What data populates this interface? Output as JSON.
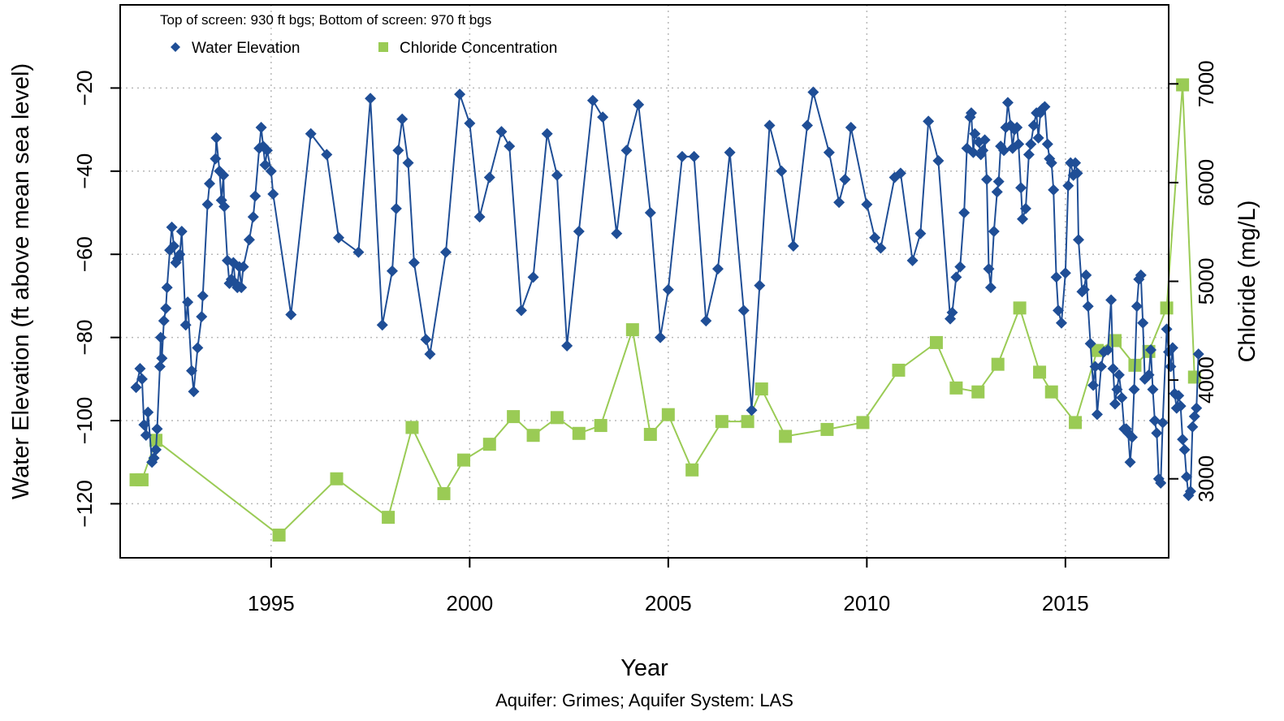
{
  "chart_data": {
    "type": "line",
    "xlabel": "Year",
    "ylabel": "Water Elevation (ft above mean sea level)",
    "y2label": "Chloride (mg/L)",
    "caption": "Aquifer: Grimes; Aquifer System: LAS",
    "note": "Top of screen: 930 ft bgs; Bottom of screen: 970 ft bgs",
    "xlim": [
      1991.2,
      2017.6
    ],
    "ylim": [
      -133,
      0
    ],
    "y2lim": [
      2200,
      7800
    ],
    "x_ticks": [
      "1995",
      "2000",
      "2005",
      "2010",
      "2015"
    ],
    "y_ticks": [
      "−20",
      "−40",
      "−60",
      "−80",
      "−100",
      "−120"
    ],
    "y2_ticks": [
      "3000",
      "4000",
      "5000",
      "6000",
      "7000"
    ],
    "grid": true,
    "legend_position": "top-left",
    "series": [
      {
        "name": "Water Elevation",
        "axis": "left",
        "color": "#1f4e96",
        "marker": "diamond",
        "points": [
          [
            1991.6,
            -92
          ],
          [
            1991.7,
            -87.5
          ],
          [
            1991.75,
            -90
          ],
          [
            1991.8,
            -101
          ],
          [
            1991.85,
            -103.5
          ],
          [
            1991.9,
            -98
          ],
          [
            1992.0,
            -110
          ],
          [
            1992.05,
            -109
          ],
          [
            1992.1,
            -107
          ],
          [
            1992.13,
            -102
          ],
          [
            1992.2,
            -87
          ],
          [
            1992.22,
            -80
          ],
          [
            1992.25,
            -85
          ],
          [
            1992.3,
            -76
          ],
          [
            1992.35,
            -73
          ],
          [
            1992.38,
            -68
          ],
          [
            1992.45,
            -59
          ],
          [
            1992.5,
            -53.5
          ],
          [
            1992.55,
            -58
          ],
          [
            1992.6,
            -62
          ],
          [
            1992.65,
            -61
          ],
          [
            1992.7,
            -60
          ],
          [
            1992.75,
            -54.5
          ],
          [
            1992.85,
            -77
          ],
          [
            1992.9,
            -71.5
          ],
          [
            1993.0,
            -88
          ],
          [
            1993.05,
            -93
          ],
          [
            1993.15,
            -82.5
          ],
          [
            1993.25,
            -75
          ],
          [
            1993.28,
            -70
          ],
          [
            1993.4,
            -48
          ],
          [
            1993.45,
            -43
          ],
          [
            1993.6,
            -37
          ],
          [
            1993.62,
            -32
          ],
          [
            1993.7,
            -40
          ],
          [
            1993.75,
            -47
          ],
          [
            1993.8,
            -41
          ],
          [
            1993.82,
            -48.5
          ],
          [
            1993.9,
            -61.5
          ],
          [
            1993.95,
            -67
          ],
          [
            1994.0,
            -66
          ],
          [
            1994.05,
            -62
          ],
          [
            1994.1,
            -67
          ],
          [
            1994.15,
            -68
          ],
          [
            1994.2,
            -63
          ],
          [
            1994.25,
            -68
          ],
          [
            1994.3,
            -63
          ],
          [
            1994.45,
            -56.5
          ],
          [
            1994.55,
            -51
          ],
          [
            1994.6,
            -46
          ],
          [
            1994.7,
            -34.5
          ],
          [
            1994.75,
            -29.5
          ],
          [
            1994.8,
            -34
          ],
          [
            1994.85,
            -38.5
          ],
          [
            1994.9,
            -35
          ],
          [
            1995.0,
            -40
          ],
          [
            1995.05,
            -45.5
          ],
          [
            1995.5,
            -74.5
          ],
          [
            1996.0,
            -31
          ],
          [
            1996.4,
            -36
          ],
          [
            1996.7,
            -56
          ],
          [
            1997.2,
            -59.5
          ],
          [
            1997.5,
            -22.5
          ],
          [
            1997.8,
            -77
          ],
          [
            1998.05,
            -64
          ],
          [
            1998.15,
            -49
          ],
          [
            1998.2,
            -35
          ],
          [
            1998.3,
            -27.5
          ],
          [
            1998.45,
            -38
          ],
          [
            1998.6,
            -62
          ],
          [
            1998.9,
            -80.5
          ],
          [
            1999.0,
            -84
          ],
          [
            1999.4,
            -59.5
          ],
          [
            1999.75,
            -21.5
          ],
          [
            2000.0,
            -28.5
          ],
          [
            2000.25,
            -51
          ],
          [
            2000.5,
            -41.5
          ],
          [
            2000.8,
            -30.5
          ],
          [
            2001.0,
            -34
          ],
          [
            2001.3,
            -73.5
          ],
          [
            2001.6,
            -65.5
          ],
          [
            2001.95,
            -31
          ],
          [
            2002.2,
            -41
          ],
          [
            2002.45,
            -82
          ],
          [
            2002.75,
            -54.5
          ],
          [
            2003.1,
            -23
          ],
          [
            2003.35,
            -27
          ],
          [
            2003.7,
            -55
          ],
          [
            2003.95,
            -35
          ],
          [
            2004.25,
            -24
          ],
          [
            2004.55,
            -50
          ],
          [
            2004.8,
            -80
          ],
          [
            2005.0,
            -68.5
          ],
          [
            2005.35,
            -36.5
          ],
          [
            2005.65,
            -36.5
          ],
          [
            2005.95,
            -76
          ],
          [
            2006.25,
            -63.5
          ],
          [
            2006.55,
            -35.5
          ],
          [
            2006.9,
            -73.5
          ],
          [
            2007.1,
            -97.5
          ],
          [
            2007.3,
            -67.5
          ],
          [
            2007.55,
            -29
          ],
          [
            2007.85,
            -40
          ],
          [
            2008.15,
            -58
          ],
          [
            2008.5,
            -29
          ],
          [
            2008.65,
            -21
          ],
          [
            2009.05,
            -35.5
          ],
          [
            2009.3,
            -47.5
          ],
          [
            2009.45,
            -42
          ],
          [
            2009.6,
            -29.5
          ],
          [
            2010.0,
            -48
          ],
          [
            2010.2,
            -56
          ],
          [
            2010.35,
            -58.5
          ],
          [
            2010.7,
            -41.5
          ],
          [
            2010.85,
            -40.5
          ],
          [
            2011.15,
            -61.5
          ],
          [
            2011.35,
            -55
          ],
          [
            2011.55,
            -28
          ],
          [
            2011.8,
            -37.5
          ],
          [
            2012.1,
            -75.5
          ],
          [
            2012.15,
            -74
          ],
          [
            2012.25,
            -65.5
          ],
          [
            2012.35,
            -63
          ],
          [
            2012.45,
            -50
          ],
          [
            2012.52,
            -34.5
          ],
          [
            2012.6,
            -27
          ],
          [
            2012.63,
            -26
          ],
          [
            2012.68,
            -35.5
          ],
          [
            2012.72,
            -31
          ],
          [
            2012.82,
            -33
          ],
          [
            2012.87,
            -36
          ],
          [
            2012.92,
            -35
          ],
          [
            2012.97,
            -32.5
          ],
          [
            2013.02,
            -42
          ],
          [
            2013.07,
            -63.5
          ],
          [
            2013.12,
            -68
          ],
          [
            2013.2,
            -54.5
          ],
          [
            2013.28,
            -45
          ],
          [
            2013.32,
            -42.5
          ],
          [
            2013.37,
            -34
          ],
          [
            2013.45,
            -35
          ],
          [
            2013.5,
            -29.5
          ],
          [
            2013.55,
            -23.5
          ],
          [
            2013.62,
            -29
          ],
          [
            2013.67,
            -34.5
          ],
          [
            2013.72,
            -30
          ],
          [
            2013.78,
            -29.5
          ],
          [
            2013.82,
            -33.5
          ],
          [
            2013.88,
            -44
          ],
          [
            2013.92,
            -51.5
          ],
          [
            2014.0,
            -49
          ],
          [
            2014.08,
            -36
          ],
          [
            2014.13,
            -33.5
          ],
          [
            2014.2,
            -29
          ],
          [
            2014.27,
            -26
          ],
          [
            2014.32,
            -32
          ],
          [
            2014.37,
            -26
          ],
          [
            2014.42,
            -25
          ],
          [
            2014.48,
            -24.5
          ],
          [
            2014.55,
            -33.5
          ],
          [
            2014.6,
            -37
          ],
          [
            2014.65,
            -38
          ],
          [
            2014.7,
            -44.5
          ],
          [
            2014.77,
            -65.5
          ],
          [
            2014.82,
            -73.5
          ],
          [
            2014.9,
            -76.5
          ],
          [
            2015.0,
            -64.5
          ],
          [
            2015.07,
            -43.5
          ],
          [
            2015.13,
            -38
          ],
          [
            2015.2,
            -41
          ],
          [
            2015.25,
            -38
          ],
          [
            2015.3,
            -40.5
          ],
          [
            2015.33,
            -56.5
          ],
          [
            2015.42,
            -69
          ],
          [
            2015.47,
            -68.5
          ],
          [
            2015.52,
            -65
          ],
          [
            2015.57,
            -72.5
          ],
          [
            2015.63,
            -81.5
          ],
          [
            2015.7,
            -91.5
          ],
          [
            2015.75,
            -87
          ],
          [
            2015.8,
            -98.5
          ],
          [
            2015.9,
            -87
          ],
          [
            2015.97,
            -83.5
          ],
          [
            2016.07,
            -83
          ],
          [
            2016.15,
            -71
          ],
          [
            2016.2,
            -87.5
          ],
          [
            2016.25,
            -96
          ],
          [
            2016.3,
            -92.5
          ],
          [
            2016.35,
            -89
          ],
          [
            2016.42,
            -94.5
          ],
          [
            2016.48,
            -102
          ],
          [
            2016.53,
            -102
          ],
          [
            2016.58,
            -103
          ],
          [
            2016.63,
            -110
          ],
          [
            2016.68,
            -104
          ],
          [
            2016.73,
            -92.5
          ],
          [
            2016.8,
            -72.5
          ],
          [
            2016.85,
            -66
          ],
          [
            2016.9,
            -65
          ],
          [
            2016.95,
            -76.5
          ],
          [
            2017.0,
            -90
          ],
          [
            2017.05,
            -89.5
          ],
          [
            2017.1,
            -89
          ],
          [
            2017.15,
            -83
          ],
          [
            2017.2,
            -92.5
          ],
          [
            2017.25,
            -100
          ],
          [
            2017.3,
            -103
          ],
          [
            2017.35,
            -114
          ],
          [
            2017.4,
            -115
          ],
          [
            2017.45,
            -100.5
          ],
          [
            2017.55,
            -78
          ],
          [
            2017.6,
            -83.5
          ],
          [
            2017.65,
            -87
          ],
          [
            2017.7,
            -82.5
          ],
          [
            2017.75,
            -93.5
          ],
          [
            2017.8,
            -97
          ],
          [
            2017.85,
            -94
          ],
          [
            2017.9,
            -96.5
          ],
          [
            2017.95,
            -104.5
          ],
          [
            2018.0,
            -107
          ],
          [
            2018.05,
            -113.5
          ],
          [
            2018.1,
            -118
          ],
          [
            2018.15,
            -117
          ],
          [
            2018.2,
            -101.5
          ],
          [
            2018.25,
            -99
          ],
          [
            2018.3,
            -97
          ],
          [
            2018.35,
            -84
          ]
        ]
      },
      {
        "name": "Chloride Concentration",
        "axis": "right",
        "color": "#9acb55",
        "marker": "square",
        "points": [
          [
            1991.6,
            2990
          ],
          [
            1991.75,
            2990
          ],
          [
            1992.1,
            3390
          ],
          [
            1995.2,
            2430
          ],
          [
            1996.65,
            3000
          ],
          [
            1997.95,
            2610
          ],
          [
            1998.55,
            3520
          ],
          [
            1999.35,
            2850
          ],
          [
            1999.85,
            3190
          ],
          [
            2000.5,
            3350
          ],
          [
            2001.1,
            3630
          ],
          [
            2001.6,
            3440
          ],
          [
            2002.2,
            3620
          ],
          [
            2002.75,
            3460
          ],
          [
            2003.3,
            3540
          ],
          [
            2004.1,
            4510
          ],
          [
            2004.55,
            3450
          ],
          [
            2005.0,
            3650
          ],
          [
            2005.6,
            3090
          ],
          [
            2006.35,
            3580
          ],
          [
            2007.0,
            3580
          ],
          [
            2007.35,
            3910
          ],
          [
            2007.95,
            3430
          ],
          [
            2009.0,
            3500
          ],
          [
            2009.9,
            3570
          ],
          [
            2010.8,
            4100
          ],
          [
            2011.75,
            4380
          ],
          [
            2012.25,
            3920
          ],
          [
            2012.8,
            3880
          ],
          [
            2013.3,
            4160
          ],
          [
            2013.85,
            4730
          ],
          [
            2014.35,
            4080
          ],
          [
            2014.65,
            3880
          ],
          [
            2015.25,
            3570
          ],
          [
            2015.8,
            4300
          ],
          [
            2016.25,
            4400
          ],
          [
            2016.75,
            4150
          ],
          [
            2017.1,
            4290
          ],
          [
            2017.55,
            4730
          ],
          [
            2017.95,
            6990
          ],
          [
            2018.25,
            4030
          ]
        ]
      }
    ]
  }
}
